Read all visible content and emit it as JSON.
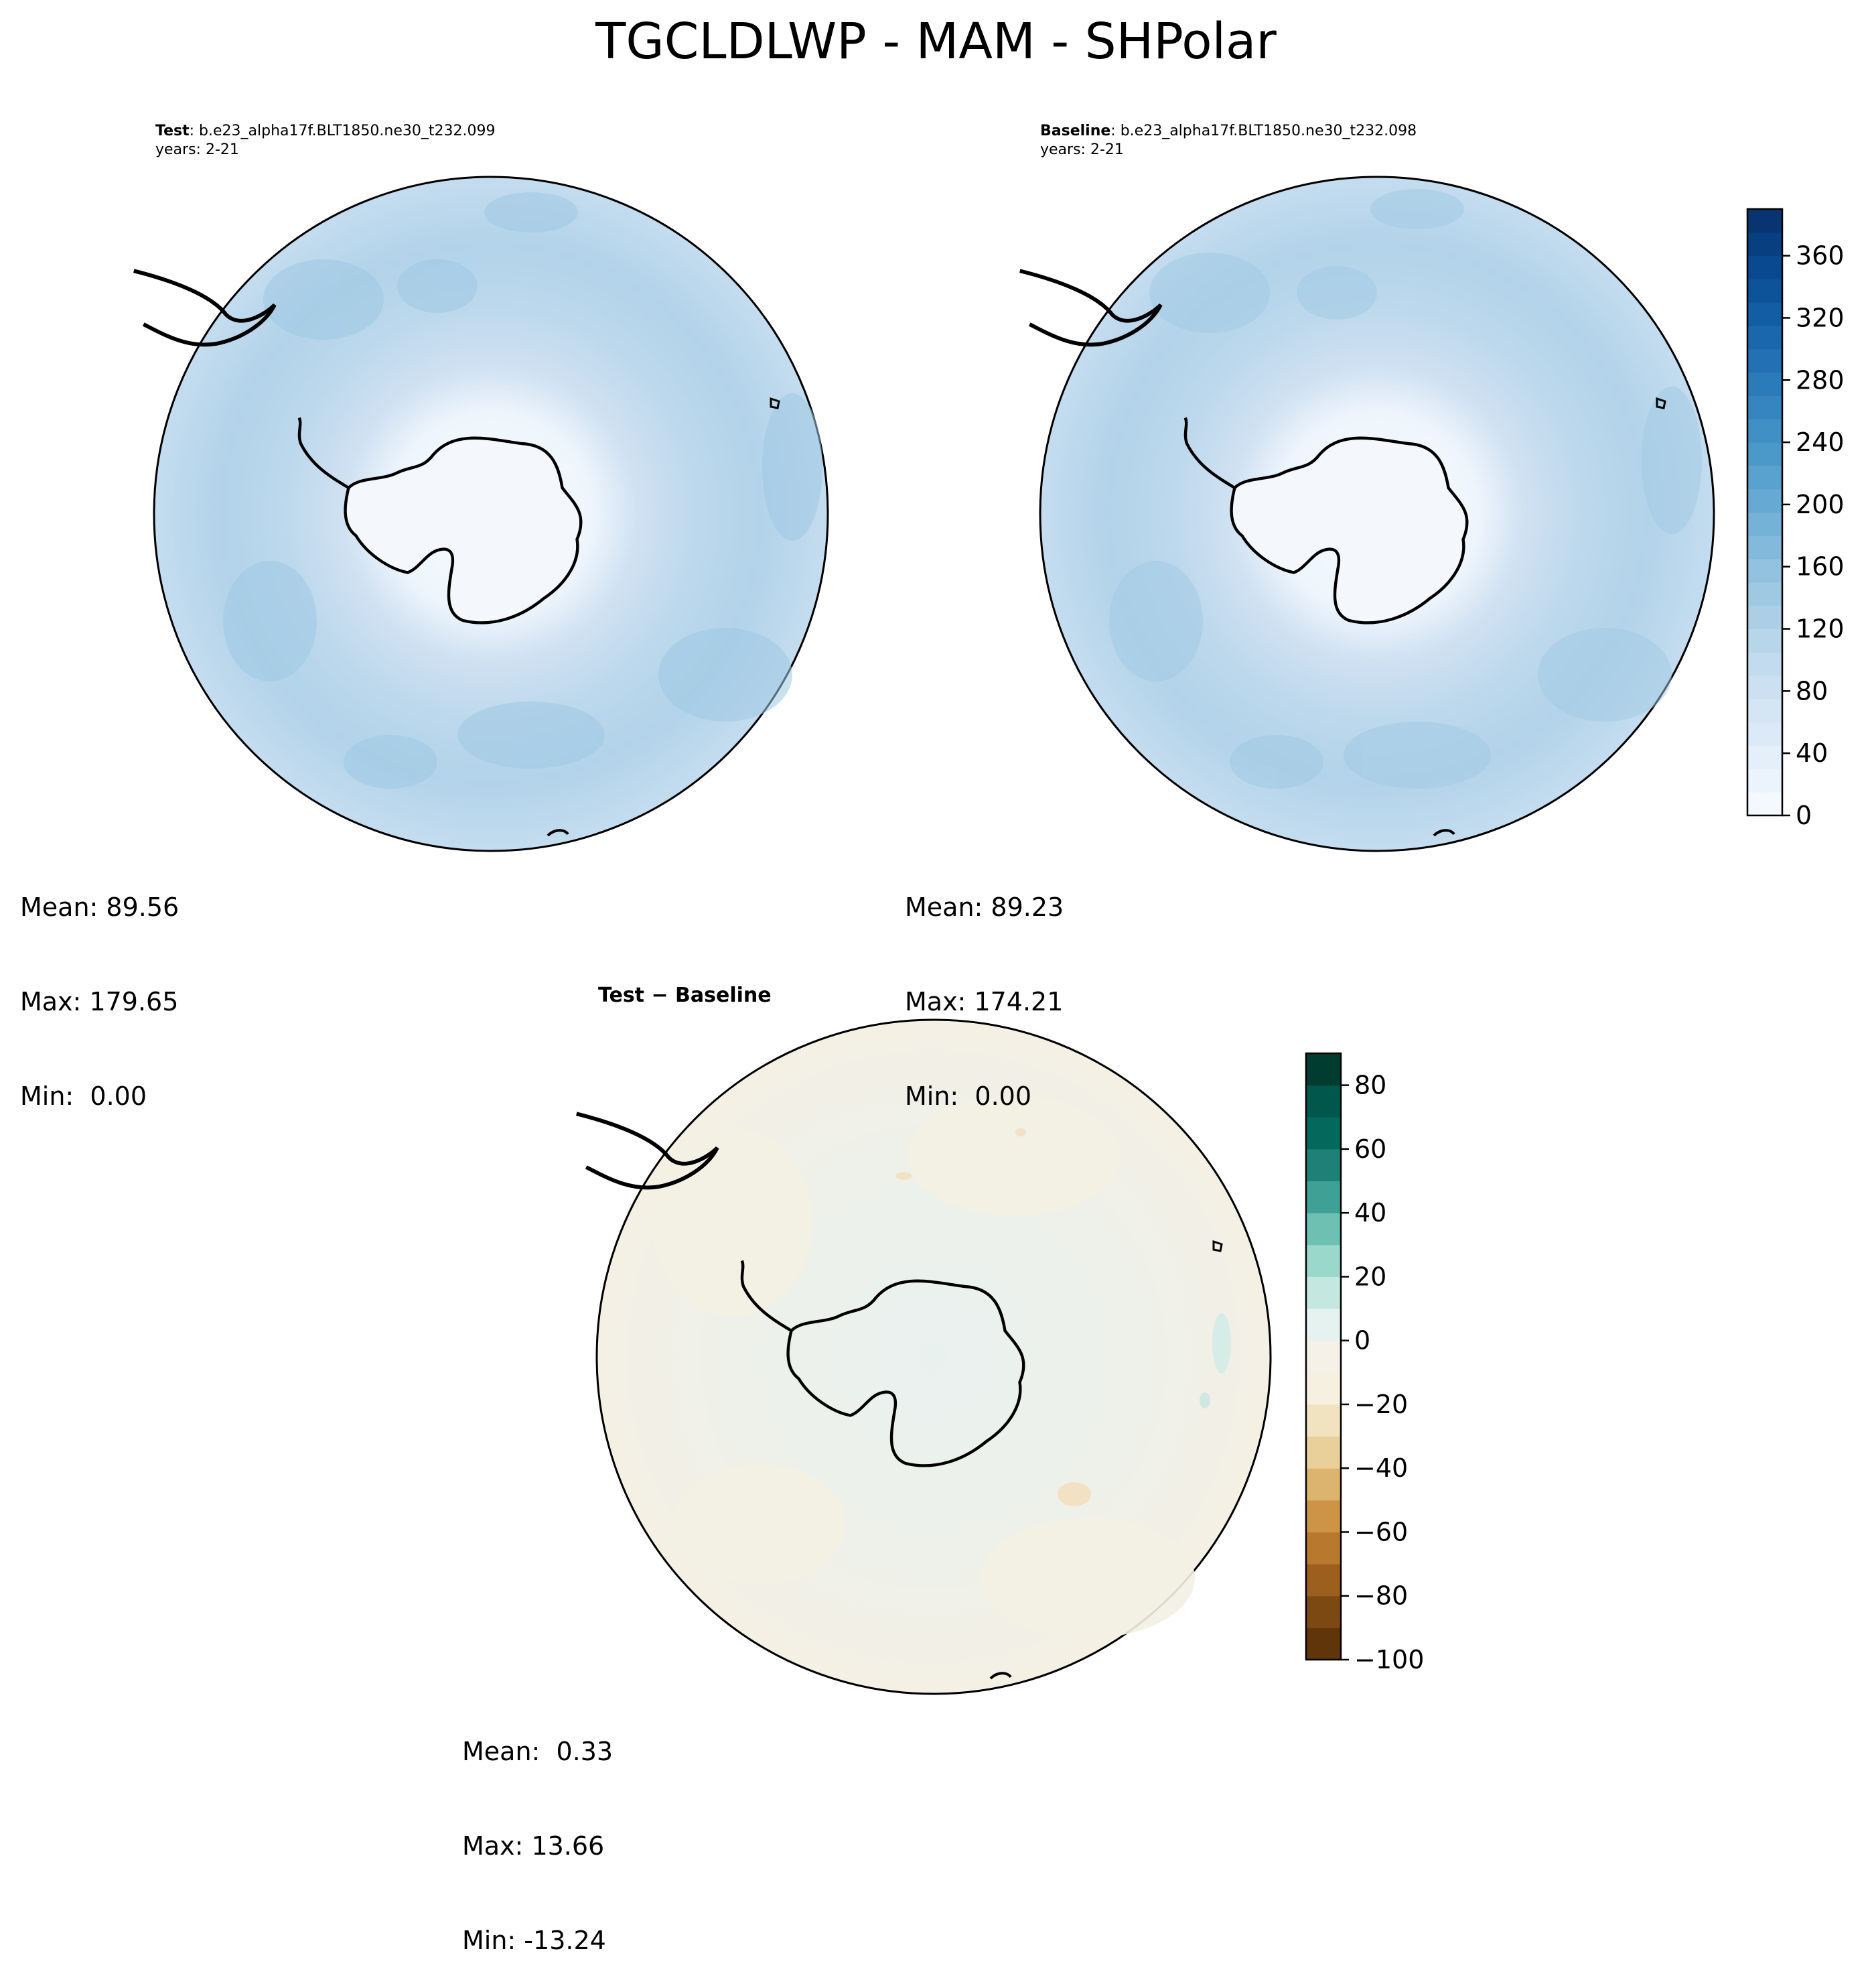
{
  "title": "TGCLDLWP - MAM - SHPolar",
  "panels": {
    "test": {
      "label": "Test",
      "case": ": b.e23_alpha17f.BLT1850.ne30_t232.099",
      "years": "years: 2-21",
      "stats": [
        "Mean: 89.56",
        "Max: 179.65",
        "Min:  0.00"
      ]
    },
    "baseline": {
      "label": "Baseline",
      "case": ": b.e23_alpha17f.BLT1850.ne30_t232.098",
      "years": "years: 2-21",
      "stats": [
        "Mean: 89.23",
        "Max: 174.21",
        "Min:  0.00"
      ]
    },
    "diff": {
      "label": "Test − Baseline",
      "stats": [
        "Mean:  0.33",
        "Max: 13.66",
        "Min: -13.24"
      ]
    }
  },
  "colors": {
    "blues": [
      "#f7fbff",
      "#e3eef9",
      "#cfe1f2",
      "#b5d4e9",
      "#93c3df",
      "#6daed5",
      "#4a98c9",
      "#2e7ebc",
      "#1764ab",
      "#084a91",
      "#08306b"
    ],
    "brbg_neg": [
      "#f5f0e0",
      "#f1e3c0",
      "#e9d09a",
      "#dcb46f",
      "#cd9448",
      "#b8782d",
      "#9c5f1d",
      "#7d4912",
      "#603509"
    ],
    "brbg_pos": [
      "#e6f2ef",
      "#c4e8e0",
      "#9ad8cc",
      "#6ec0b2",
      "#3fa096",
      "#1f8077",
      "#05685d",
      "#01574c",
      "#003c30"
    ]
  },
  "chart_data": [
    {
      "type": "heatmap",
      "name": "Test",
      "projection": "south polar stereographic",
      "colormap": "Blues",
      "colorbar": {
        "ticks": [
          "0",
          "40",
          "80",
          "120",
          "160",
          "200",
          "240",
          "280",
          "320",
          "360"
        ],
        "range": [
          0,
          390
        ]
      },
      "mean": 89.56,
      "max": 179.65,
      "min": 0.0
    },
    {
      "type": "heatmap",
      "name": "Baseline",
      "projection": "south polar stereographic",
      "colormap": "Blues",
      "colorbar": {
        "ticks": [
          "0",
          "40",
          "80",
          "120",
          "160",
          "200",
          "240",
          "280",
          "320",
          "360"
        ],
        "range": [
          0,
          390
        ]
      },
      "mean": 89.23,
      "max": 174.21,
      "min": 0.0
    },
    {
      "type": "heatmap",
      "name": "Test − Baseline",
      "projection": "south polar stereographic",
      "colormap": "BrBG",
      "colorbar": {
        "ticks": [
          "−100",
          "−80",
          "−60",
          "−40",
          "−20",
          "0",
          "20",
          "40",
          "60",
          "80"
        ],
        "range": [
          -100,
          90
        ]
      },
      "mean": 0.33,
      "max": 13.66,
      "min": -13.24
    }
  ]
}
